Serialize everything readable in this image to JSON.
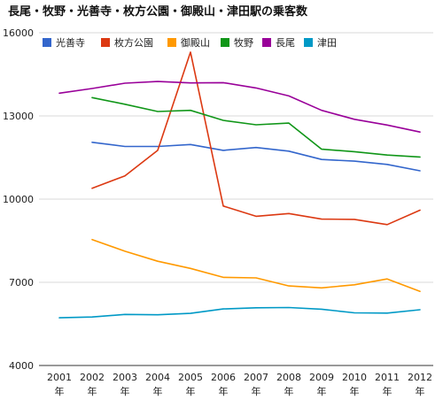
{
  "chart_data": {
    "type": "line",
    "title": "長尾・牧野・光善寺・枚方公園・御殿山・津田駅の乗客数",
    "xlabel": "",
    "ylabel": "",
    "categories": [
      "2001",
      "2002",
      "2003",
      "2004",
      "2005",
      "2006",
      "2007",
      "2008",
      "2009",
      "2010",
      "2011",
      "2012"
    ],
    "category_suffix": "年",
    "ylim": [
      4000,
      16000
    ],
    "yticks": [
      "4000",
      "7000",
      "10000",
      "13000",
      "16000"
    ],
    "grid": true,
    "legend_position": "top",
    "series": [
      {
        "name": "光善寺",
        "color": "#3366cc",
        "values": [
          null,
          12050,
          11900,
          11900,
          11970,
          11760,
          11860,
          11730,
          11430,
          11370,
          11250,
          11020
        ]
      },
      {
        "name": "枚方公園",
        "color": "#dc3912",
        "values": [
          null,
          10390,
          10840,
          11760,
          15300,
          9750,
          9380,
          9480,
          9280,
          9270,
          9080,
          9600
        ]
      },
      {
        "name": "御殿山",
        "color": "#ff9900",
        "values": [
          null,
          8540,
          8120,
          7760,
          7500,
          7180,
          7160,
          6870,
          6800,
          6910,
          7120,
          6670
        ]
      },
      {
        "name": "牧野",
        "color": "#109618",
        "values": [
          null,
          13660,
          13420,
          13160,
          13200,
          12840,
          12680,
          12740,
          11800,
          11710,
          11590,
          11520
        ]
      },
      {
        "name": "長尾",
        "color": "#990099",
        "values": [
          13820,
          13990,
          14180,
          14240,
          14190,
          14200,
          14010,
          13720,
          13200,
          12880,
          12670,
          12420
        ]
      },
      {
        "name": "津田",
        "color": "#0099c6",
        "values": [
          5720,
          5750,
          5840,
          5830,
          5880,
          6040,
          6080,
          6090,
          6030,
          5900,
          5890,
          6010
        ]
      }
    ]
  }
}
